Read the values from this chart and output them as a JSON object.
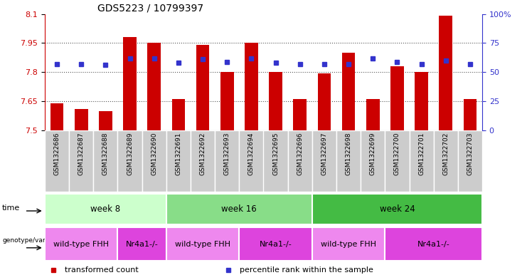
{
  "title": "GDS5223 / 10799397",
  "samples": [
    "GSM1322686",
    "GSM1322687",
    "GSM1322688",
    "GSM1322689",
    "GSM1322690",
    "GSM1322691",
    "GSM1322692",
    "GSM1322693",
    "GSM1322694",
    "GSM1322695",
    "GSM1322696",
    "GSM1322697",
    "GSM1322698",
    "GSM1322699",
    "GSM1322700",
    "GSM1322701",
    "GSM1322702",
    "GSM1322703"
  ],
  "transformed_counts": [
    7.64,
    7.61,
    7.6,
    7.98,
    7.95,
    7.66,
    7.94,
    7.8,
    7.95,
    7.8,
    7.66,
    7.795,
    7.9,
    7.66,
    7.83,
    7.8,
    8.09,
    7.66
  ],
  "percentile_ranks": [
    57,
    57,
    56,
    62,
    62,
    58,
    61,
    59,
    62,
    58,
    57,
    57,
    57,
    62,
    59,
    57,
    60,
    57
  ],
  "y_min": 7.5,
  "y_max": 8.1,
  "y_ticks": [
    7.5,
    7.65,
    7.8,
    7.95,
    8.1
  ],
  "y2_ticks": [
    0,
    25,
    50,
    75,
    100
  ],
  "bar_color": "#cc0000",
  "dot_color": "#3333cc",
  "bg_color": "#ffffff",
  "time_groups": [
    {
      "label": "week 8",
      "start": 0,
      "end": 5,
      "color": "#ccffcc"
    },
    {
      "label": "week 16",
      "start": 5,
      "end": 11,
      "color": "#88dd88"
    },
    {
      "label": "week 24",
      "start": 11,
      "end": 18,
      "color": "#44bb44"
    }
  ],
  "genotype_groups": [
    {
      "label": "wild-type FHH",
      "start": 0,
      "end": 3,
      "color": "#ee88ee"
    },
    {
      "label": "Nr4a1-/-",
      "start": 3,
      "end": 5,
      "color": "#dd44dd"
    },
    {
      "label": "wild-type FHH",
      "start": 5,
      "end": 8,
      "color": "#ee88ee"
    },
    {
      "label": "Nr4a1-/-",
      "start": 8,
      "end": 11,
      "color": "#dd44dd"
    },
    {
      "label": "wild-type FHH",
      "start": 11,
      "end": 14,
      "color": "#ee88ee"
    },
    {
      "label": "Nr4a1-/-",
      "start": 14,
      "end": 18,
      "color": "#dd44dd"
    }
  ],
  "left_y_color": "#cc0000",
  "right_y_color": "#3333cc",
  "tick_bg_color": "#cccccc",
  "tick_sep_color": "#ffffff"
}
